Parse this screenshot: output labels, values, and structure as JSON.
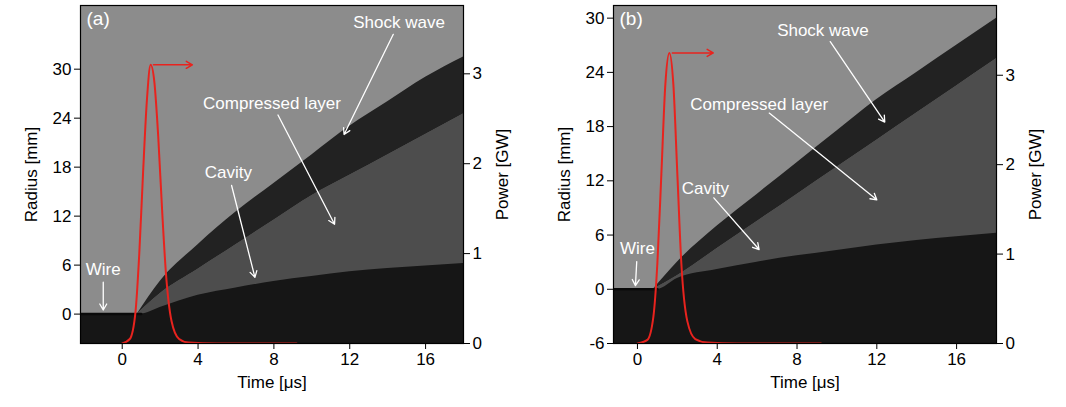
{
  "chart_data": [
    {
      "type": "line",
      "title": "(a)",
      "x_label": "Time [μs]",
      "y_label": "Radius [mm]",
      "y2_label": "Power [GW]",
      "xlim": [
        -2.2,
        18
      ],
      "xticks": [
        0,
        4,
        8,
        12,
        16
      ],
      "ylim": [
        -3.6,
        37.8
      ],
      "yticks": [
        0,
        6,
        12,
        18,
        24,
        30
      ],
      "y2lim": [
        0,
        3.76
      ],
      "y2ticks": [
        0,
        1,
        2,
        3
      ],
      "series": [
        {
          "type": "area",
          "color": "#4d4d4d",
          "x": [
            0.8,
            2,
            4,
            6,
            8,
            10,
            12,
            14,
            16,
            18
          ],
          "values": [
            0,
            2.5,
            5.5,
            8.5,
            11.5,
            14.5,
            17,
            19.5,
            22,
            24.5
          ]
        },
        {
          "type": "area",
          "color": "#222222",
          "x": [
            0.8,
            2,
            4,
            6,
            8,
            10,
            12,
            14,
            16,
            18
          ],
          "values": [
            0,
            4,
            8.5,
            12.5,
            16,
            19.5,
            23,
            26,
            29,
            31.5
          ],
          "lower": [
            0,
            2.5,
            5.5,
            8.5,
            11.5,
            14.5,
            17,
            19.5,
            22,
            24.5
          ]
        },
        {
          "type": "area",
          "color": "#161616",
          "x": [
            -2.2,
            1,
            2,
            4,
            6,
            8,
            10,
            12,
            14,
            16,
            18
          ],
          "values": [
            0,
            0,
            0.8,
            2.3,
            3.2,
            4,
            4.6,
            5.2,
            5.6,
            5.9,
            6.2
          ]
        },
        {
          "type": "line",
          "color": "#0a0a0a",
          "x": [
            -2.2,
            1
          ],
          "values": [
            0,
            0
          ]
        },
        {
          "type": "line",
          "color": "#e8231e",
          "axis": "y2",
          "x": [
            0,
            0.4,
            0.7,
            0.9,
            1.1,
            1.3,
            1.5,
            1.7,
            1.9,
            2.1,
            2.3,
            2.6,
            3.0,
            3.5,
            5,
            7,
            9.2
          ],
          "values": [
            0,
            0.05,
            0.35,
            1.0,
            1.9,
            2.7,
            3.1,
            2.9,
            2.3,
            1.5,
            0.8,
            0.25,
            0.05,
            0.01,
            0,
            0,
            0
          ]
        }
      ],
      "annotations": [
        {
          "text": "Shock wave",
          "text_x": 14.6,
          "text_y": 35.7,
          "x": 11.7,
          "y": 22
        },
        {
          "text": "Compressed layer",
          "text_x": 7.9,
          "text_y": 25.8,
          "x": 11.2,
          "y": 11
        },
        {
          "text": "Cavity",
          "text_x": 5.6,
          "text_y": 17.3,
          "x": 7,
          "y": 4.5
        },
        {
          "text": "Wire",
          "text_x": -1.0,
          "text_y": 5.5,
          "x": -1.0,
          "y": 0.5
        }
      ]
    },
    {
      "type": "line",
      "title": "(b)",
      "x_label": "Time [μs]",
      "y_label": "Radius [mm]",
      "y2_label": "Power [GW]",
      "xlim": [
        -1.2,
        18
      ],
      "xticks": [
        0,
        4,
        8,
        12,
        16
      ],
      "ylim": [
        -6,
        31.4
      ],
      "yticks": [
        -6,
        0,
        6,
        12,
        18,
        24,
        30
      ],
      "y2lim": [
        0,
        3.78
      ],
      "y2ticks": [
        0,
        1,
        2,
        3
      ],
      "series": [
        {
          "type": "area",
          "color": "#4d4d4d",
          "x": [
            0.8,
            2,
            4,
            6,
            8,
            10,
            12,
            14,
            16,
            18
          ],
          "values": [
            0,
            1.5,
            4.5,
            7.5,
            10.5,
            13.5,
            16.5,
            19.5,
            22.5,
            25.5
          ]
        },
        {
          "type": "area",
          "color": "#222222",
          "x": [
            0.8,
            2,
            4,
            6,
            8,
            10,
            12,
            14,
            16,
            18
          ],
          "values": [
            0,
            3,
            7,
            10.5,
            14,
            17.5,
            21,
            24,
            27,
            30
          ],
          "lower": [
            0,
            1.5,
            4.5,
            7.5,
            10.5,
            13.5,
            16.5,
            19.5,
            22.5,
            25.5
          ]
        },
        {
          "type": "area",
          "color": "#161616",
          "x": [
            -1.2,
            1,
            2,
            4,
            6,
            8,
            10,
            12,
            14,
            16,
            18
          ],
          "values": [
            0,
            0,
            1.2,
            2.2,
            3,
            3.7,
            4.3,
            4.9,
            5.4,
            5.8,
            6.2
          ]
        },
        {
          "type": "line",
          "color": "#0a0a0a",
          "x": [
            -1.2,
            1
          ],
          "values": [
            0,
            0
          ]
        },
        {
          "type": "line",
          "color": "#e8231e",
          "axis": "y2",
          "x": [
            0,
            0.5,
            0.8,
            1.0,
            1.2,
            1.4,
            1.6,
            1.8,
            2.0,
            2.2,
            2.5,
            2.9,
            3.5,
            5,
            7,
            9.2
          ],
          "values": [
            0,
            0.04,
            0.3,
            0.9,
            1.9,
            2.9,
            3.25,
            2.9,
            1.9,
            0.9,
            0.25,
            0.05,
            0.01,
            0,
            0,
            0
          ]
        }
      ],
      "annotations": [
        {
          "text": "Shock wave",
          "text_x": 9.3,
          "text_y": 28.6,
          "x": 12.4,
          "y": 18.5
        },
        {
          "text": "Compressed layer",
          "text_x": 6.1,
          "text_y": 20.4,
          "x": 12,
          "y": 9.9
        },
        {
          "text": "Cavity",
          "text_x": 3.4,
          "text_y": 11.2,
          "x": 6.1,
          "y": 4.4
        },
        {
          "text": "Wire",
          "text_x": 0.0,
          "text_y": 4.5,
          "x": -0.1,
          "y": 0.4
        }
      ]
    }
  ]
}
